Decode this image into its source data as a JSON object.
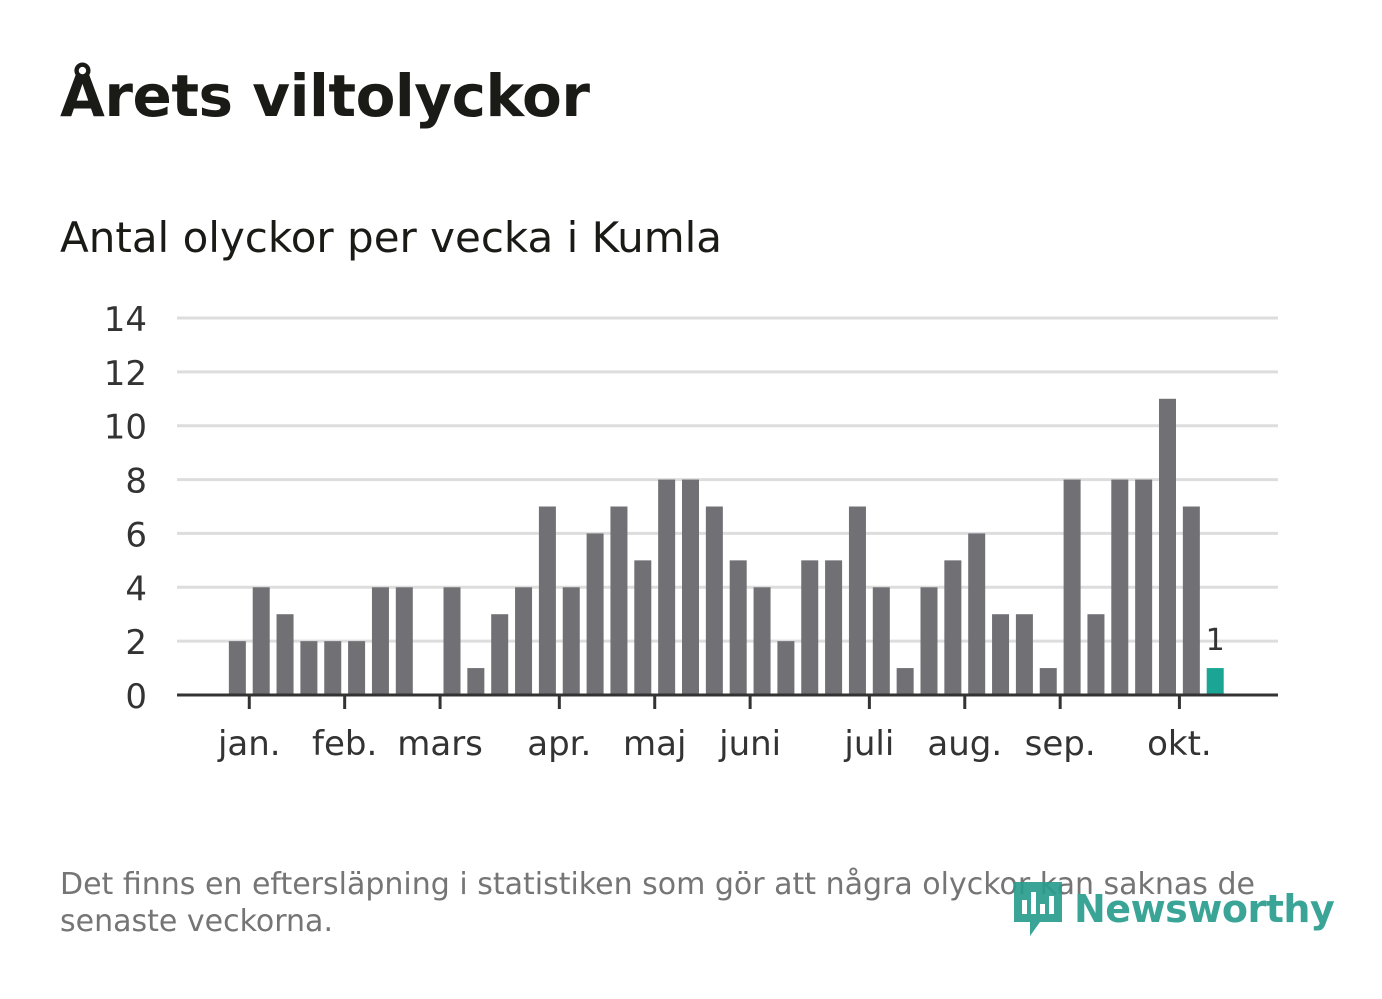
{
  "title": "Årets viltolyckor",
  "subtitle": "Antal olyckor per vecka i Kumla",
  "footnote": "Det finns en eftersläpning i statistiken som gör att några olyckor kan saknas de senaste veckorna.",
  "brand": {
    "name": "Newsworthy",
    "icon": "newsworthy-logo-icon",
    "color": "#2a9d8f"
  },
  "colors": {
    "bar": "#707075",
    "highlight": "#1aa594",
    "grid": "#dddddd",
    "axis": "#333333",
    "text": "#333333"
  },
  "chart_data": {
    "type": "bar",
    "title": "Antal olyckor per vecka i Kumla",
    "xlabel": "",
    "ylabel": "",
    "ylim": [
      0,
      14
    ],
    "yticks": [
      "0",
      "2",
      "4",
      "6",
      "8",
      "10",
      "12",
      "14"
    ],
    "grid": true,
    "weeks": [
      1,
      2,
      3,
      4,
      5,
      6,
      7,
      8,
      9,
      10,
      11,
      12,
      13,
      14,
      15,
      16,
      17,
      18,
      19,
      20,
      21,
      22,
      23,
      24,
      25,
      26,
      27,
      28,
      29,
      30,
      31,
      32,
      33,
      34,
      35,
      36,
      37,
      38,
      39,
      40,
      41,
      42,
      43,
      44
    ],
    "values": [
      0,
      2,
      4,
      3,
      2,
      2,
      2,
      4,
      4,
      0,
      4,
      1,
      3,
      4,
      7,
      4,
      6,
      7,
      5,
      8,
      8,
      7,
      5,
      4,
      2,
      5,
      5,
      7,
      4,
      1,
      4,
      5,
      6,
      3,
      3,
      1,
      8,
      3,
      8,
      8,
      11,
      7,
      1,
      null
    ],
    "highlight_index": 42,
    "highlight_label": "1",
    "month_ticks": [
      {
        "label": "jan.",
        "week": 2.5
      },
      {
        "label": "feb.",
        "week": 6.5
      },
      {
        "label": "mars",
        "week": 10.5
      },
      {
        "label": "apr.",
        "week": 15.5
      },
      {
        "label": "maj",
        "week": 19.5
      },
      {
        "label": "juni",
        "week": 23.5
      },
      {
        "label": "juli",
        "week": 28.5
      },
      {
        "label": "aug.",
        "week": 32.5
      },
      {
        "label": "sep.",
        "week": 36.5
      },
      {
        "label": "okt.",
        "week": 41.5
      }
    ]
  }
}
